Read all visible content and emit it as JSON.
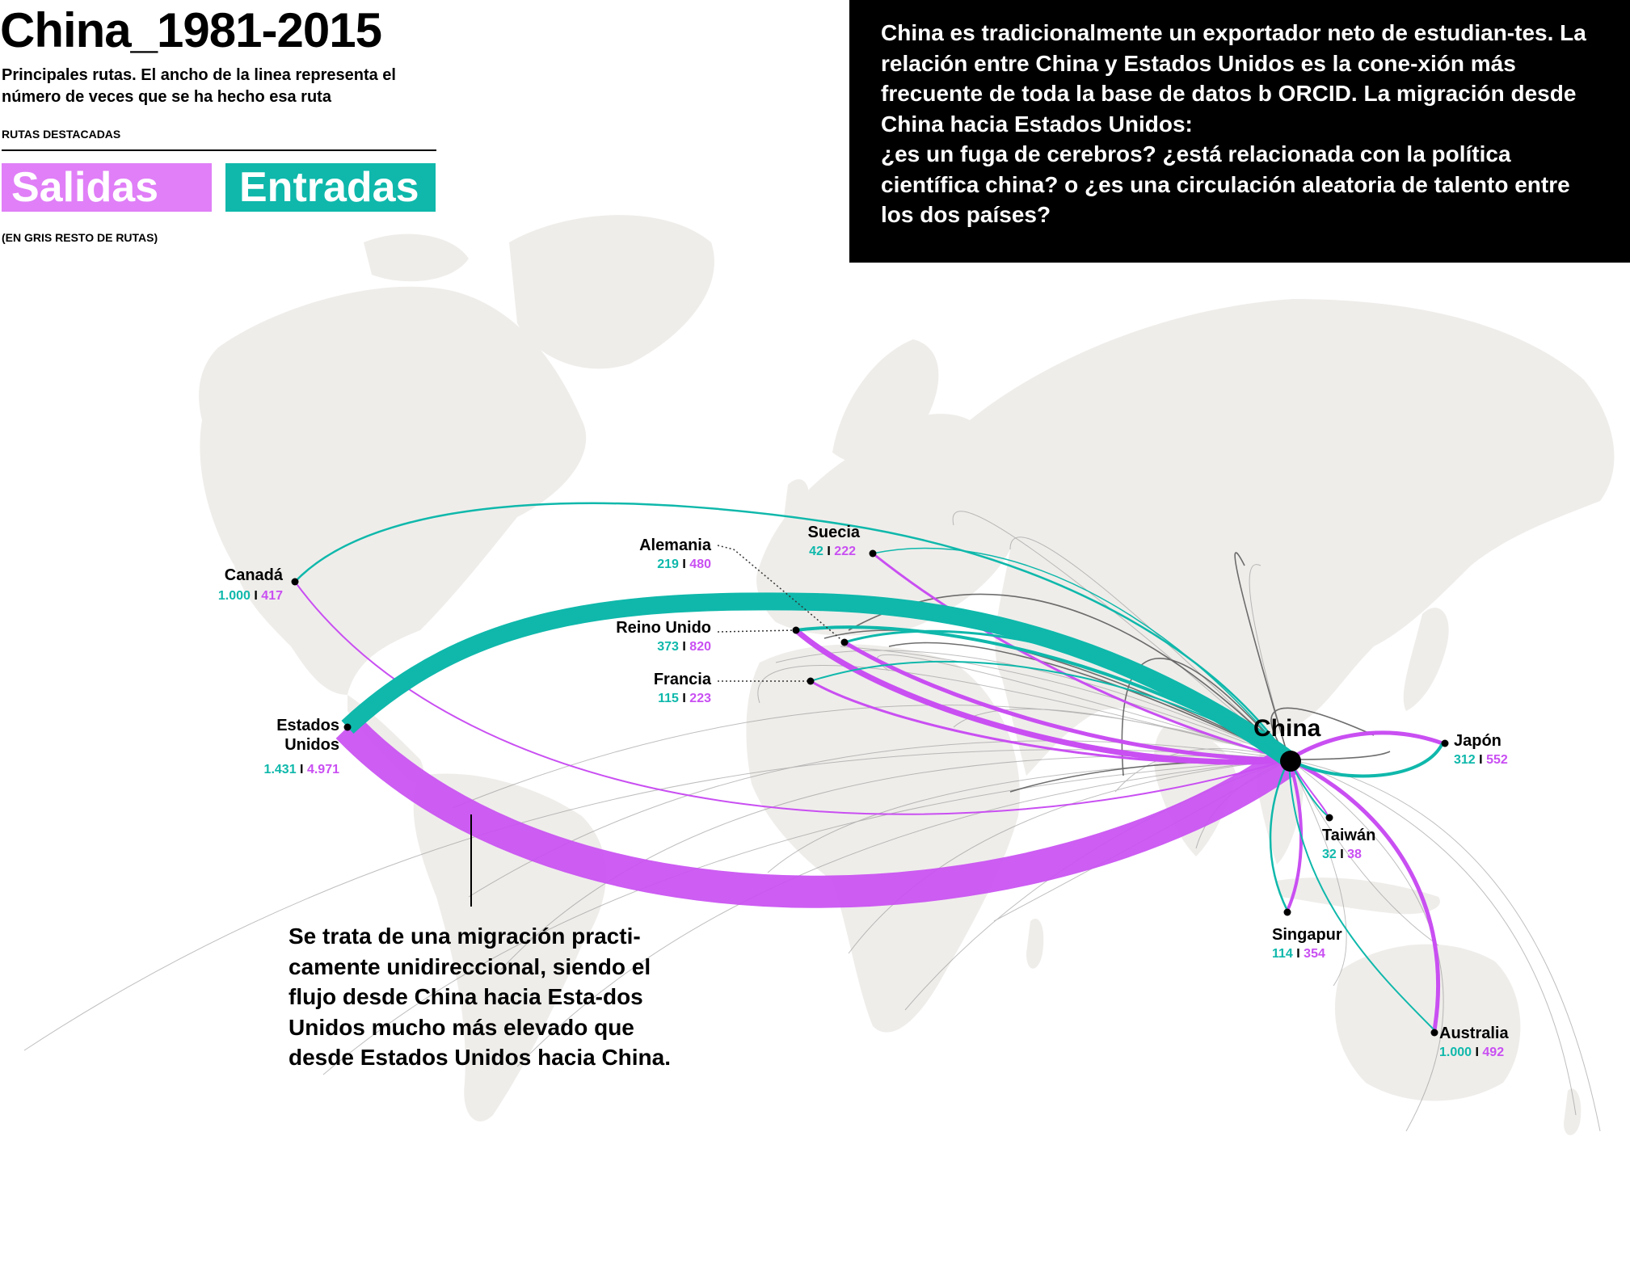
{
  "header": {
    "title": "China_1981-2015",
    "subtitle": "Principales rutas. El ancho de la linea representa el número de veces que se ha hecho esa ruta",
    "section_label": "RUTAS DESTACADAS",
    "legend_out": "Salidas",
    "legend_in": "Entradas",
    "note_gray": "(EN GRIS RESTO DE RUTAS)"
  },
  "description": {
    "line1": "China es tradicionalmente un exportador neto de estudian-tes. La relación entre China y Estados Unidos es la cone-xión más frecuente de toda la base de datos b ORCID. La migración desde China hacia Estados Unidos:",
    "line2": "¿es un fuga de cerebros? ¿está relacionada con la política científica china? o ¿es una circulación aleatoria de talento entre los dos países?"
  },
  "annotation": "Se trata de una migración practi-camente unidireccional, siendo el flujo desde China hacia Esta-dos Unidos mucho más elevado que desde Estados Unidos hacia China.",
  "colors": {
    "salidas": "#c94ff2",
    "entradas": "#0fb8ab",
    "resto": "#8a8a8a",
    "land": "#efedea"
  },
  "hub": {
    "name": "China"
  },
  "countries": [
    {
      "id": "canada",
      "name": "Canadá",
      "in": "1.000",
      "out": "417"
    },
    {
      "id": "usa",
      "name": "Estados Unidos",
      "name_l1": "Estados",
      "name_l2": "Unidos",
      "in": "1.431",
      "out": "4.971"
    },
    {
      "id": "alemania",
      "name": "Alemania",
      "in": "219",
      "out": "480"
    },
    {
      "id": "suecia",
      "name": "Suecia",
      "in": "42",
      "out": "222"
    },
    {
      "id": "reino-unido",
      "name": "Reino Unido",
      "in": "373",
      "out": "820"
    },
    {
      "id": "francia",
      "name": "Francia",
      "in": "115",
      "out": "223"
    },
    {
      "id": "japon",
      "name": "Japón",
      "in": "312",
      "out": "552"
    },
    {
      "id": "taiwan",
      "name": "Taiwán",
      "in": "32",
      "out": "38"
    },
    {
      "id": "singapur",
      "name": "Singapur",
      "in": "114",
      "out": "354"
    },
    {
      "id": "australia",
      "name": "Australia",
      "in": "1.000",
      "out": "492"
    }
  ],
  "separator": "I"
}
